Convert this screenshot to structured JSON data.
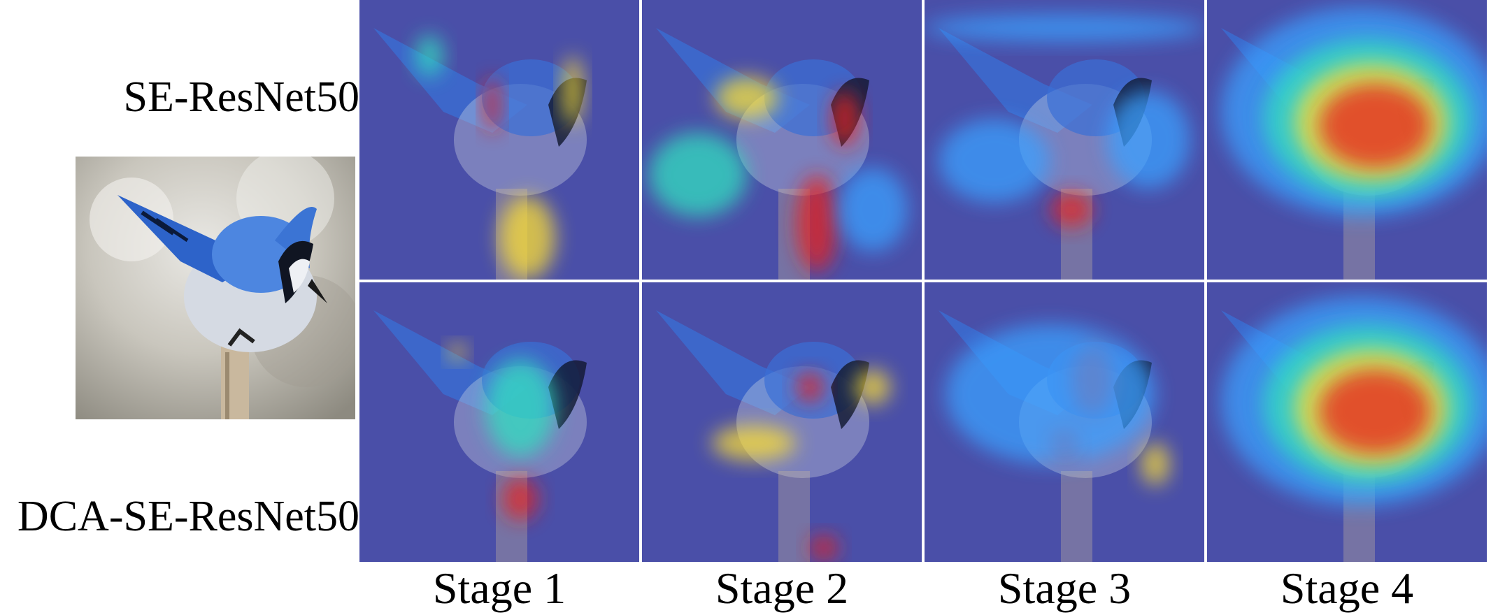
{
  "figure": {
    "rows": [
      {
        "label": "SE-ResNet50"
      },
      {
        "label": "DCA-SE-ResNet50"
      }
    ],
    "columns": [
      {
        "label": "Stage 1"
      },
      {
        "label": "Stage 2"
      },
      {
        "label": "Stage 3"
      },
      {
        "label": "Stage 4"
      }
    ],
    "colors": {
      "heat_cold": "#4a4fa8",
      "heat_cool": "#3aa0ff",
      "heat_mid": "#33e0c0",
      "heat_warm": "#ffe133",
      "heat_hot": "#e8201a",
      "bird_blue": "#3a6fd6",
      "bird_white": "#d8dde6",
      "background_gray": "#b9b6ae"
    }
  }
}
